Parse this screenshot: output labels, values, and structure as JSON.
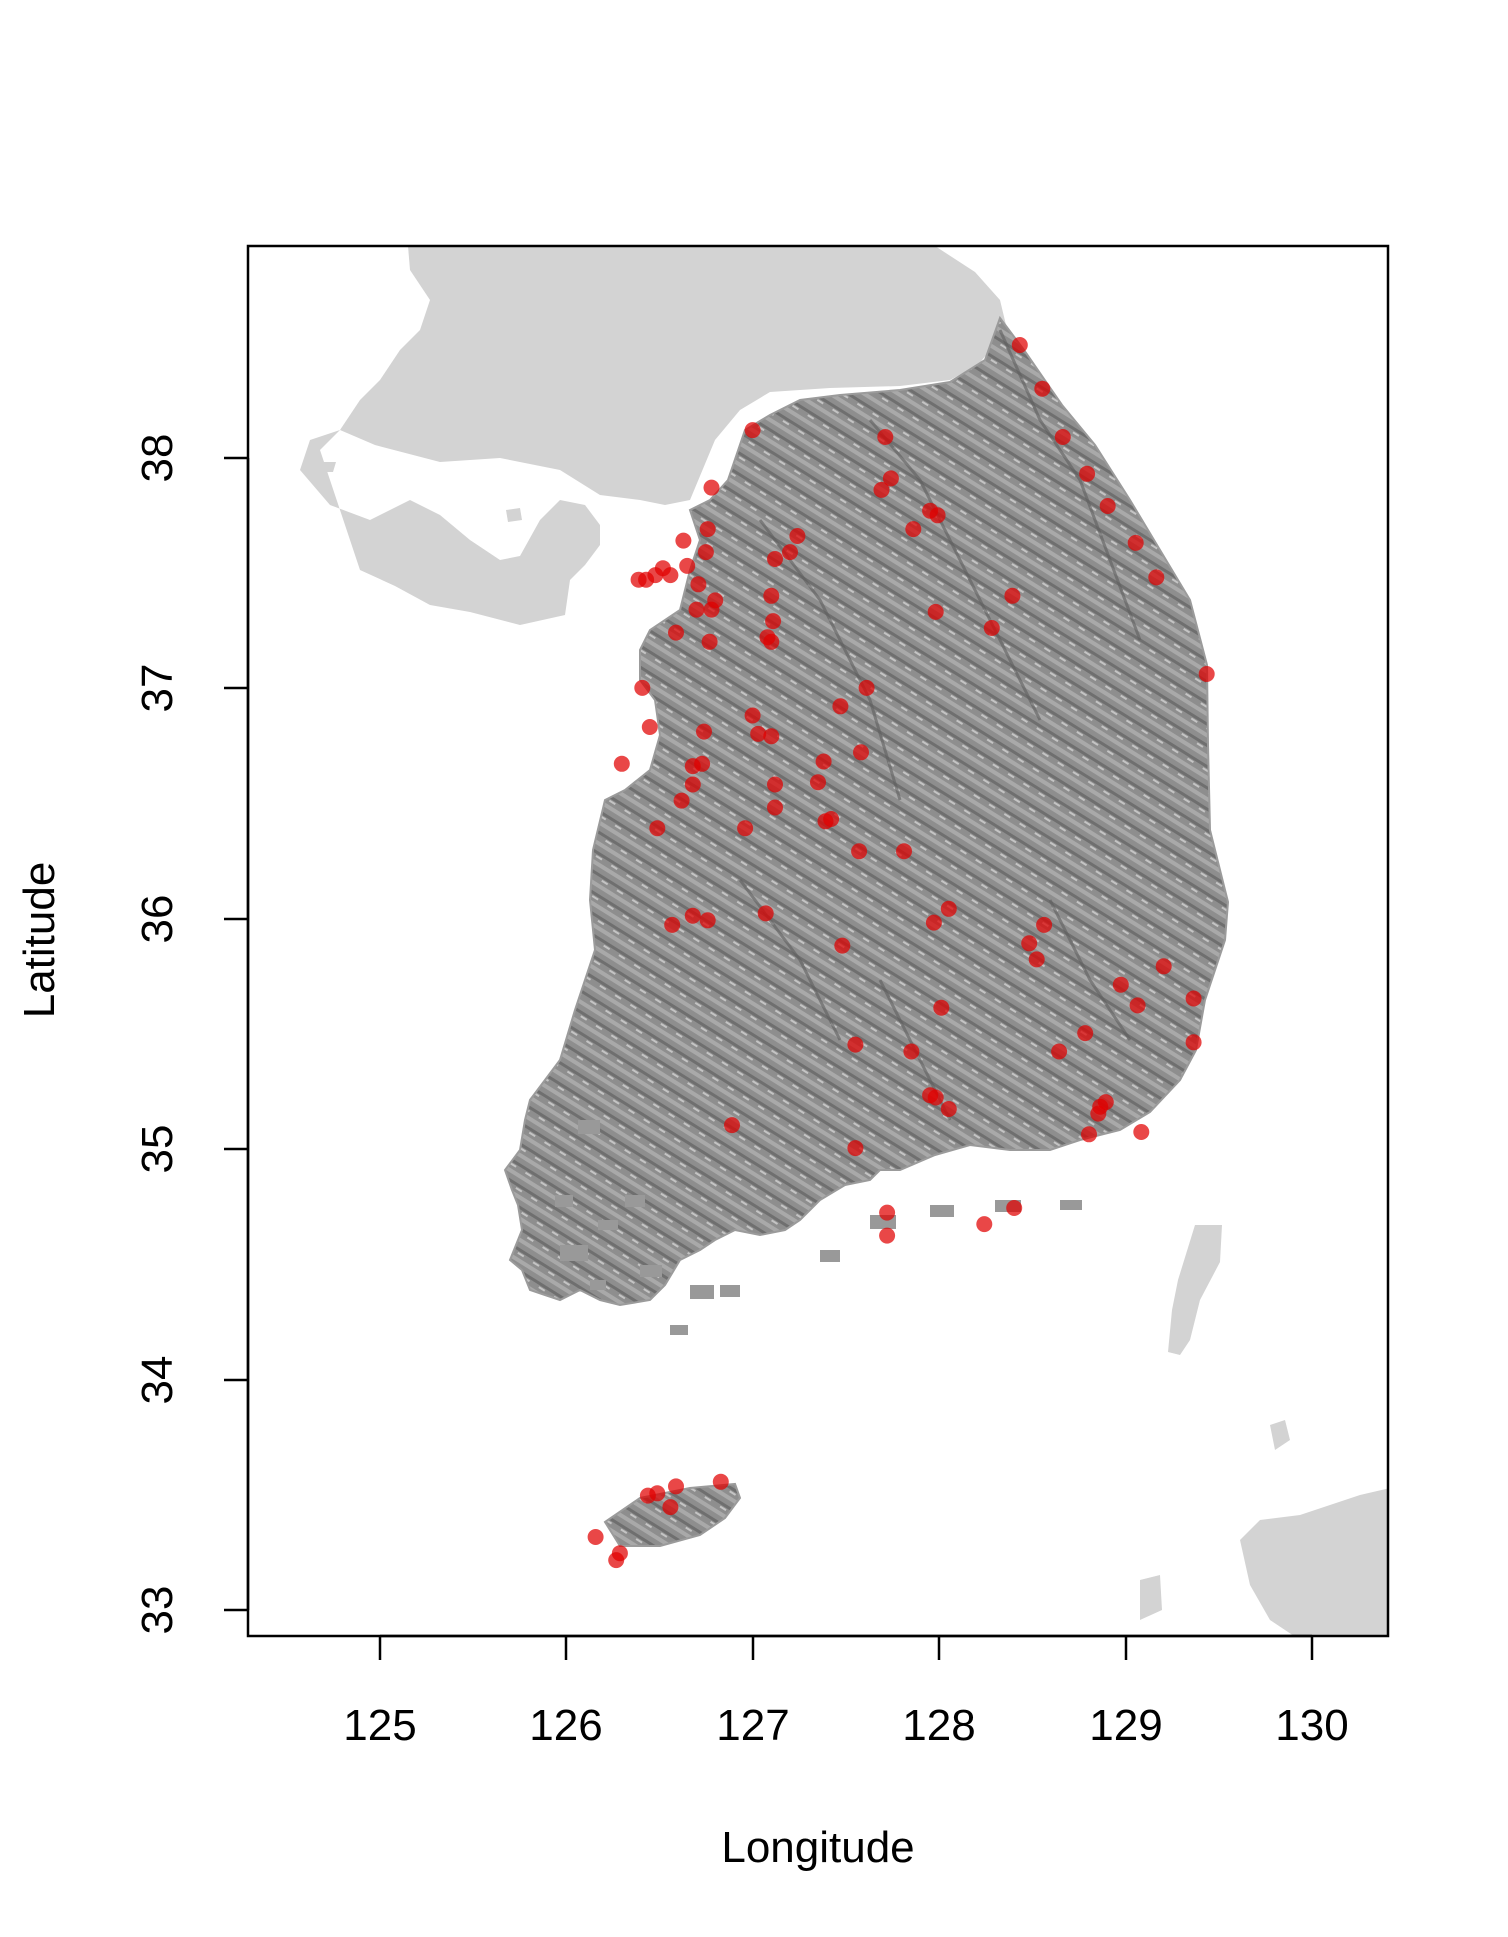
{
  "chart_data": {
    "type": "scatter",
    "xlabel": "Longitude",
    "ylabel": "Latitude",
    "xlim": [
      124.3,
      130.4
    ],
    "ylim": [
      32.88,
      38.92
    ],
    "x_ticks": [
      "125",
      "126",
      "127",
      "128",
      "129",
      "130"
    ],
    "y_ticks": [
      "33",
      "34",
      "35",
      "36",
      "37",
      "38"
    ],
    "basemap": "shaded-relief",
    "grid": false,
    "point_color": "#e00000",
    "land_color_neighbor": "#d3d3d3",
    "land_color_relief": "#8c8c8c",
    "points": [
      {
        "x": 128.43,
        "y": 38.49
      },
      {
        "x": 128.55,
        "y": 38.3
      },
      {
        "x": 128.66,
        "y": 38.09
      },
      {
        "x": 128.79,
        "y": 37.93
      },
      {
        "x": 128.9,
        "y": 37.79
      },
      {
        "x": 129.05,
        "y": 37.63
      },
      {
        "x": 129.16,
        "y": 37.48
      },
      {
        "x": 129.43,
        "y": 37.06
      },
      {
        "x": 127.0,
        "y": 38.12
      },
      {
        "x": 127.71,
        "y": 38.09
      },
      {
        "x": 127.74,
        "y": 37.91
      },
      {
        "x": 127.69,
        "y": 37.86
      },
      {
        "x": 127.95,
        "y": 37.77
      },
      {
        "x": 127.99,
        "y": 37.75
      },
      {
        "x": 127.86,
        "y": 37.69
      },
      {
        "x": 126.78,
        "y": 37.87
      },
      {
        "x": 126.76,
        "y": 37.69
      },
      {
        "x": 126.63,
        "y": 37.64
      },
      {
        "x": 126.75,
        "y": 37.59
      },
      {
        "x": 126.65,
        "y": 37.53
      },
      {
        "x": 126.71,
        "y": 37.45
      },
      {
        "x": 127.24,
        "y": 37.66
      },
      {
        "x": 127.2,
        "y": 37.59
      },
      {
        "x": 127.12,
        "y": 37.56
      },
      {
        "x": 126.39,
        "y": 37.47
      },
      {
        "x": 126.43,
        "y": 37.47
      },
      {
        "x": 126.48,
        "y": 37.49
      },
      {
        "x": 126.52,
        "y": 37.52
      },
      {
        "x": 126.56,
        "y": 37.49
      },
      {
        "x": 126.7,
        "y": 37.34
      },
      {
        "x": 126.78,
        "y": 37.34
      },
      {
        "x": 126.8,
        "y": 37.38
      },
      {
        "x": 126.59,
        "y": 37.24
      },
      {
        "x": 126.77,
        "y": 37.2
      },
      {
        "x": 127.1,
        "y": 37.4
      },
      {
        "x": 127.11,
        "y": 37.29
      },
      {
        "x": 127.08,
        "y": 37.22
      },
      {
        "x": 127.1,
        "y": 37.2
      },
      {
        "x": 127.98,
        "y": 37.33
      },
      {
        "x": 128.39,
        "y": 37.4
      },
      {
        "x": 128.28,
        "y": 37.26
      },
      {
        "x": 126.41,
        "y": 37.0
      },
      {
        "x": 126.45,
        "y": 36.83
      },
      {
        "x": 126.3,
        "y": 36.67
      },
      {
        "x": 126.74,
        "y": 36.81
      },
      {
        "x": 127.0,
        "y": 36.88
      },
      {
        "x": 127.03,
        "y": 36.8
      },
      {
        "x": 127.1,
        "y": 36.79
      },
      {
        "x": 127.47,
        "y": 36.92
      },
      {
        "x": 127.61,
        "y": 37.0
      },
      {
        "x": 127.58,
        "y": 36.72
      },
      {
        "x": 127.38,
        "y": 36.68
      },
      {
        "x": 126.68,
        "y": 36.66
      },
      {
        "x": 126.73,
        "y": 36.67
      },
      {
        "x": 127.12,
        "y": 36.58
      },
      {
        "x": 127.12,
        "y": 36.48
      },
      {
        "x": 126.68,
        "y": 36.58
      },
      {
        "x": 126.62,
        "y": 36.51
      },
      {
        "x": 127.35,
        "y": 36.59
      },
      {
        "x": 126.49,
        "y": 36.39
      },
      {
        "x": 126.96,
        "y": 36.39
      },
      {
        "x": 127.39,
        "y": 36.42
      },
      {
        "x": 127.42,
        "y": 36.43
      },
      {
        "x": 127.57,
        "y": 36.29
      },
      {
        "x": 127.81,
        "y": 36.29
      },
      {
        "x": 126.57,
        "y": 35.97
      },
      {
        "x": 126.68,
        "y": 36.01
      },
      {
        "x": 126.76,
        "y": 35.99
      },
      {
        "x": 127.07,
        "y": 36.02
      },
      {
        "x": 127.48,
        "y": 35.88
      },
      {
        "x": 127.97,
        "y": 35.98
      },
      {
        "x": 128.05,
        "y": 36.04
      },
      {
        "x": 128.56,
        "y": 35.97
      },
      {
        "x": 128.48,
        "y": 35.89
      },
      {
        "x": 128.52,
        "y": 35.82
      },
      {
        "x": 128.97,
        "y": 35.71
      },
      {
        "x": 129.2,
        "y": 35.79
      },
      {
        "x": 129.36,
        "y": 35.65
      },
      {
        "x": 128.01,
        "y": 35.61
      },
      {
        "x": 129.06,
        "y": 35.62
      },
      {
        "x": 128.78,
        "y": 35.5
      },
      {
        "x": 128.64,
        "y": 35.42
      },
      {
        "x": 129.36,
        "y": 35.46
      },
      {
        "x": 127.55,
        "y": 35.45
      },
      {
        "x": 127.85,
        "y": 35.42
      },
      {
        "x": 127.95,
        "y": 35.23
      },
      {
        "x": 127.98,
        "y": 35.22
      },
      {
        "x": 128.05,
        "y": 35.17
      },
      {
        "x": 128.86,
        "y": 35.18
      },
      {
        "x": 128.89,
        "y": 35.2
      },
      {
        "x": 128.85,
        "y": 35.15
      },
      {
        "x": 126.89,
        "y": 35.1
      },
      {
        "x": 127.55,
        "y": 35.0
      },
      {
        "x": 128.8,
        "y": 35.06
      },
      {
        "x": 129.08,
        "y": 35.07
      },
      {
        "x": 127.72,
        "y": 34.72
      },
      {
        "x": 127.72,
        "y": 34.62
      },
      {
        "x": 128.4,
        "y": 34.74
      },
      {
        "x": 128.24,
        "y": 34.67
      },
      {
        "x": 126.44,
        "y": 33.49
      },
      {
        "x": 126.49,
        "y": 33.5
      },
      {
        "x": 126.59,
        "y": 33.53
      },
      {
        "x": 126.83,
        "y": 33.55
      },
      {
        "x": 126.56,
        "y": 33.44
      },
      {
        "x": 126.16,
        "y": 33.31
      },
      {
        "x": 126.29,
        "y": 33.24
      },
      {
        "x": 126.27,
        "y": 33.21
      }
    ]
  }
}
